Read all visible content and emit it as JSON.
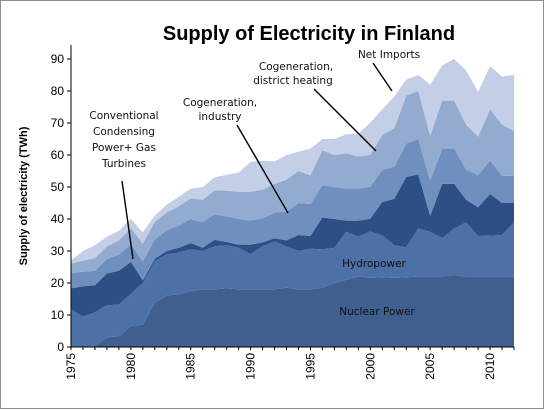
{
  "chart_data": {
    "type": "area",
    "stacked": true,
    "title": "Supply of Electricity in Finland",
    "ylabel": "Supply of electricity (TWh)",
    "xlabel": "",
    "xlim": [
      1975,
      2012
    ],
    "ylim": [
      0,
      90
    ],
    "yticks": [
      0,
      10,
      20,
      30,
      40,
      50,
      60,
      70,
      80,
      90
    ],
    "xticks": [
      1975,
      1980,
      1985,
      1990,
      1995,
      2000,
      2005,
      2010
    ],
    "x": [
      1975,
      1976,
      1977,
      1978,
      1979,
      1980,
      1981,
      1982,
      1983,
      1984,
      1985,
      1986,
      1987,
      1988,
      1989,
      1990,
      1991,
      1992,
      1993,
      1994,
      1995,
      1996,
      1997,
      1998,
      1999,
      2000,
      2001,
      2002,
      2003,
      2004,
      2005,
      2006,
      2007,
      2008,
      2009,
      2010,
      2011,
      2012
    ],
    "colors": {
      "nuclear": "#3f5f8e",
      "hydro": "#4b71a6",
      "conventional": "#2c4f86",
      "industry": "#6f8fbf",
      "district": "#94abd0",
      "imports": "#c2cfe6"
    },
    "series": [
      {
        "key": "nuclear",
        "values": [
          0,
          0,
          0.3,
          3,
          3.3,
          6.6,
          7,
          13.8,
          16,
          16.5,
          17.5,
          18,
          18,
          18.3,
          18,
          18,
          18,
          18,
          18.5,
          18,
          18,
          18.5,
          20,
          21,
          22,
          21.6,
          21.8,
          21.6,
          21.8,
          22,
          22,
          22,
          22.5,
          22,
          22,
          22,
          22,
          22
        ]
      },
      {
        "key": "hydro",
        "values": [
          11.8,
          9.5,
          10.5,
          10,
          10,
          10,
          13,
          13,
          13,
          13,
          13,
          12,
          13.5,
          13.5,
          13,
          11,
          13.5,
          15,
          12.8,
          12,
          12.7,
          12,
          11,
          15,
          12.5,
          14.5,
          13,
          10.2,
          9.3,
          15,
          14,
          12,
          14.5,
          17,
          12.7,
          12.8,
          13,
          17
        ]
      },
      {
        "key": "conventional",
        "values": [
          6.5,
          9.5,
          8.5,
          10,
          10.5,
          10,
          0.8,
          0.8,
          1,
          1.5,
          2,
          1,
          2,
          1,
          1,
          3,
          1.2,
          1,
          2,
          5,
          4,
          10,
          9,
          3.5,
          5,
          4,
          10.5,
          14.5,
          22,
          17,
          5,
          17,
          14,
          7,
          9,
          13,
          10,
          6
        ]
      },
      {
        "key": "industry",
        "values": [
          4.8,
          4.5,
          4.5,
          4.5,
          5,
          5.5,
          6,
          6,
          6.5,
          7,
          7.5,
          8,
          8,
          8,
          8,
          7.5,
          7.5,
          8,
          9,
          10,
          10,
          10,
          10,
          10,
          10,
          10,
          10,
          10,
          10.5,
          11,
          11,
          11,
          11,
          9.5,
          10,
          10.5,
          8.5,
          8.5
        ]
      },
      {
        "key": "district",
        "values": [
          3,
          3.5,
          4,
          4,
          4.5,
          5,
          5.5,
          5.5,
          5.5,
          6,
          6.5,
          7,
          7.5,
          8,
          8.5,
          9,
          9,
          9,
          10,
          10,
          9,
          11,
          10,
          11,
          10,
          10,
          11,
          12,
          15,
          15,
          14,
          15,
          15,
          14,
          12,
          16,
          16,
          14
        ]
      },
      {
        "key": "imports",
        "values": [
          1,
          3,
          4,
          3,
          3,
          3,
          3.5,
          2,
          2.5,
          3,
          3,
          4,
          4,
          5,
          6,
          9.4,
          9,
          7,
          7.7,
          6,
          8.3,
          3.5,
          5,
          6,
          7.2,
          10,
          8,
          10,
          5,
          5,
          16,
          11,
          13,
          17,
          14,
          13.5,
          15,
          17.5
        ]
      }
    ],
    "annotations": {
      "net_imports": "Net Imports",
      "district_1": "Cogeneration,",
      "district_2": "district heating",
      "industry_1": "Cogeneration,",
      "industry_2": "industry",
      "conv_1": "Conventional",
      "conv_2": "Condensing",
      "conv_3": "Power+ Gas",
      "conv_4": "Turbines",
      "hydropower": "Hydropower",
      "nuclear": "Nuclear Power"
    }
  }
}
